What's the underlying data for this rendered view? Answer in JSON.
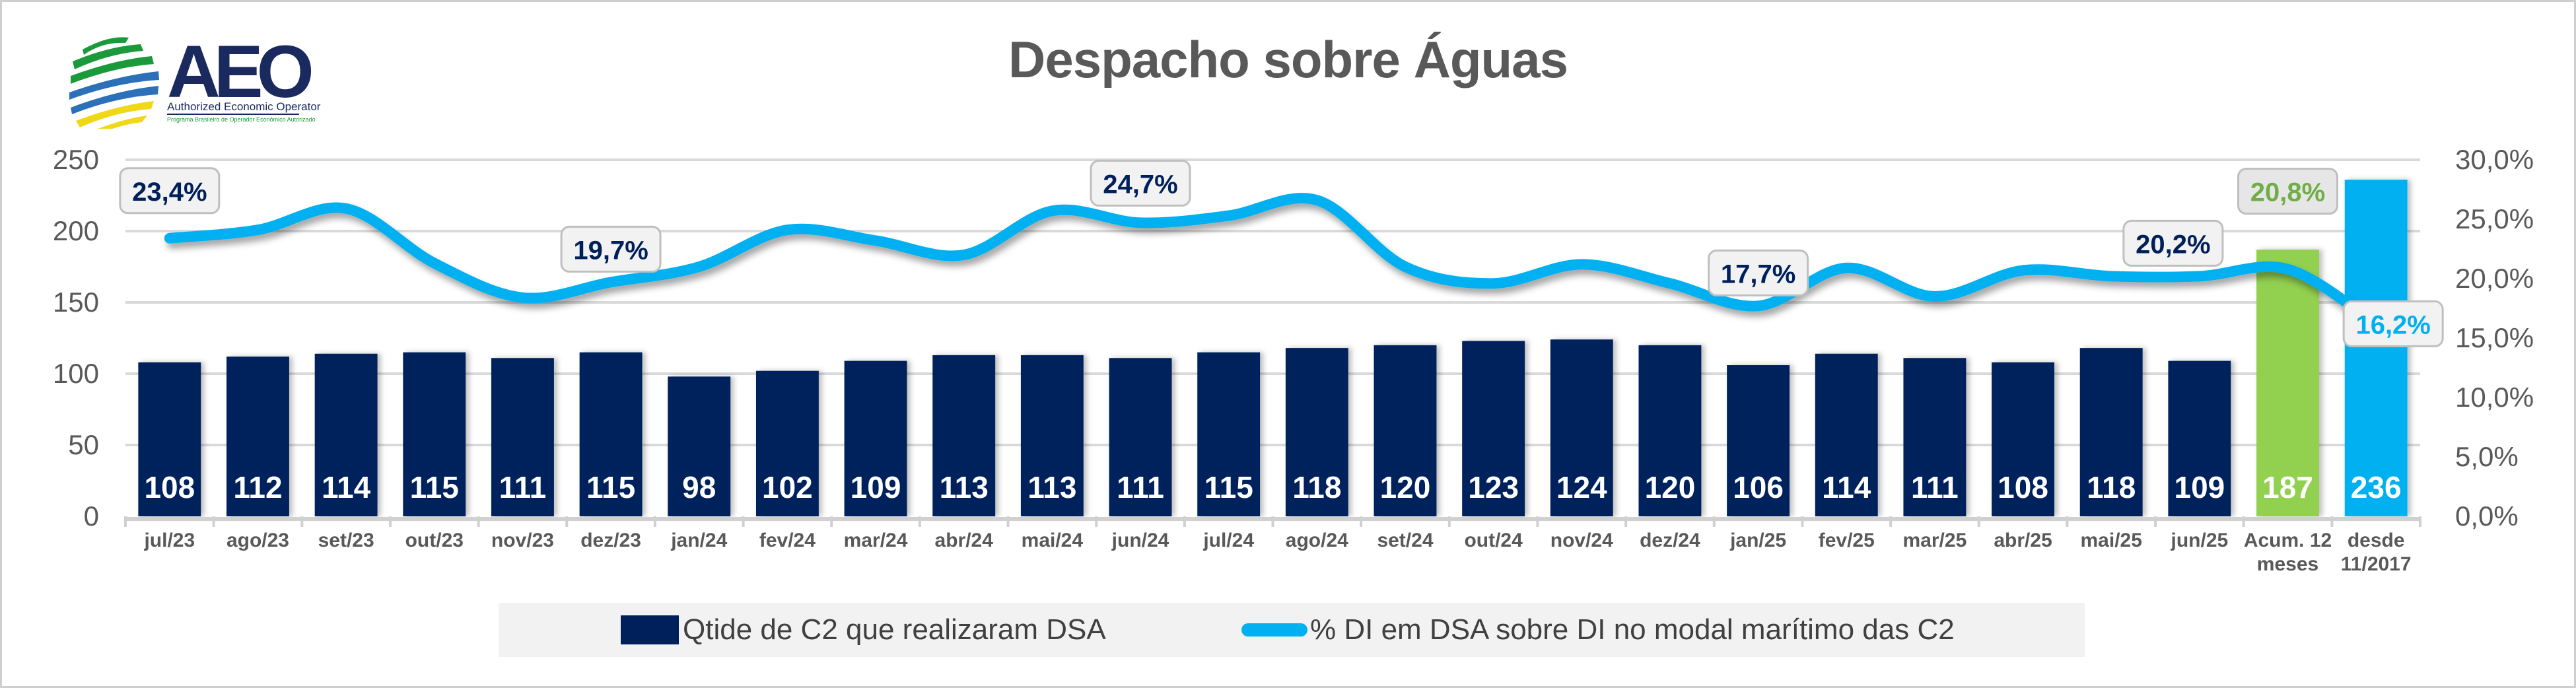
{
  "title": "Despacho sobre Águas",
  "logo": {
    "acronym": "AEO",
    "name": "Authorized Economic Operator",
    "subtitle": "Programa Brasileiro de Operador Econômico Autorizado"
  },
  "colors": {
    "bar_monthly": "#00205b",
    "bar_accum_12m": "#92d050",
    "bar_since_2017": "#00b0f0",
    "line": "#00b0f0",
    "label_dark": "#00205b",
    "label_green": "#70ad47",
    "label_blue": "#00b0f0",
    "axis_text": "#595959",
    "gridline": "#d9d9d9"
  },
  "chart_data": {
    "type": "bar+line",
    "title": "Despacho sobre Águas",
    "categories": [
      "jul/23",
      "ago/23",
      "set/23",
      "out/23",
      "nov/23",
      "dez/23",
      "jan/24",
      "fev/24",
      "mar/24",
      "abr/24",
      "mai/24",
      "jun/24",
      "jul/24",
      "ago/24",
      "set/24",
      "out/24",
      "nov/24",
      "dez/24",
      "jan/25",
      "fev/25",
      "mar/25",
      "abr/25",
      "mai/25",
      "jun/25",
      "Acum. 12 meses",
      "desde 11/2017"
    ],
    "series": [
      {
        "name": "Qtide de C2 que realizaram DSA",
        "type": "bar",
        "axis": "left",
        "values": [
          108,
          112,
          114,
          115,
          111,
          115,
          98,
          102,
          109,
          113,
          113,
          111,
          115,
          118,
          120,
          123,
          124,
          120,
          106,
          114,
          111,
          108,
          118,
          109,
          187,
          236
        ],
        "data_labels": [
          "108",
          "112",
          "114",
          "115",
          "111",
          "115",
          "98",
          "102",
          "109",
          "113",
          "113",
          "111",
          "115",
          "118",
          "120",
          "123",
          "124",
          "120",
          "106",
          "114",
          "111",
          "108",
          "118",
          "109",
          "187",
          "236"
        ]
      },
      {
        "name": "% DI em DSA sobre DI no modal marítimo das  C2",
        "type": "line",
        "axis": "right",
        "values": [
          23.4,
          24.1,
          25.9,
          21.3,
          18.4,
          19.7,
          21.0,
          24.1,
          23.2,
          22.0,
          25.7,
          24.7,
          25.3,
          26.6,
          21.0,
          19.6,
          21.2,
          19.6,
          17.7,
          20.9,
          18.5,
          20.7,
          20.2,
          20.2,
          20.8,
          16.2
        ],
        "callouts": [
          {
            "index": 0,
            "text": "23,4%",
            "color": "dark"
          },
          {
            "index": 5,
            "text": "19,7%",
            "color": "dark"
          },
          {
            "index": 11,
            "text": "24,7%",
            "color": "dark"
          },
          {
            "index": 18,
            "text": "17,7%",
            "color": "dark"
          },
          {
            "index": 23,
            "text": "20,2%",
            "color": "dark"
          },
          {
            "index": 24,
            "text": "20,8%",
            "color": "green"
          },
          {
            "index": 25,
            "text": "16,2%",
            "color": "blue"
          }
        ]
      }
    ],
    "y_left": {
      "min": 0,
      "max": 250,
      "ticks": [
        "0",
        "50",
        "100",
        "150",
        "200",
        "250"
      ]
    },
    "y_right": {
      "min": 0,
      "max": 30,
      "ticks": [
        "0,0%",
        "5,0%",
        "10,0%",
        "15,0%",
        "20,0%",
        "25,0%",
        "30,0%"
      ]
    },
    "grid": true,
    "legend_position": "bottom"
  },
  "legend": {
    "bar_label": "Qtide de C2 que realizaram DSA",
    "line_label": "% DI em DSA sobre DI no modal marítimo das  C2"
  }
}
